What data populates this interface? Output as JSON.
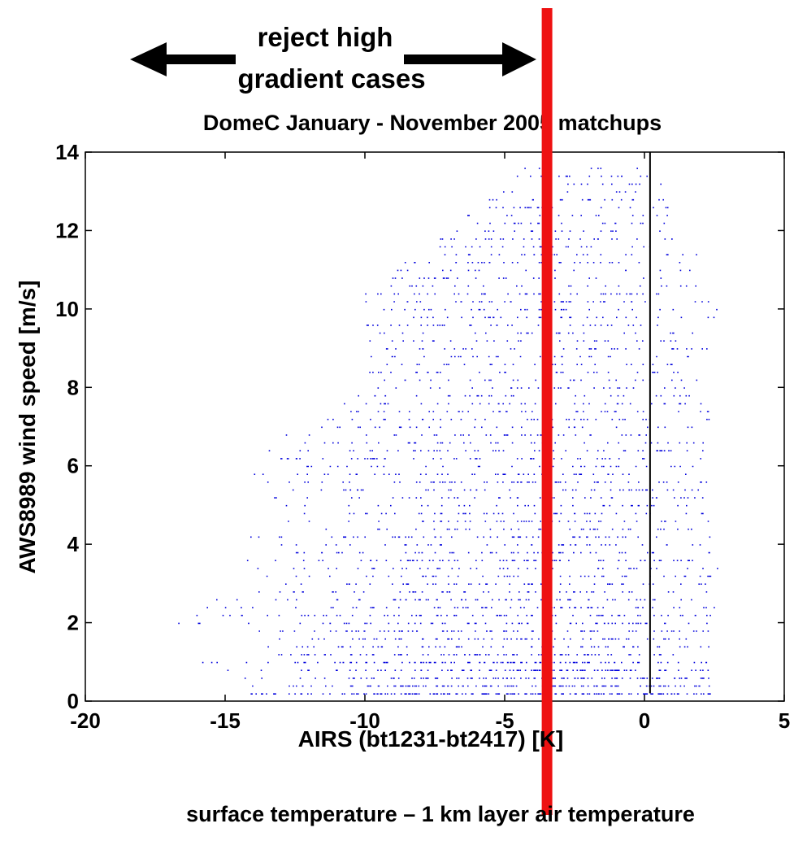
{
  "annotations": {
    "reject_line1": "reject high",
    "reject_line2": "gradient cases",
    "bottom_caption": "surface temperature – 1 km layer air temperature"
  },
  "chart_data": {
    "type": "scatter",
    "title": "DomeC January - November 2005 matchups",
    "xlabel": "AIRS (bt1231-bt2417) [K]",
    "ylabel": "AWS8989 wind speed [m/s]",
    "xlim": [
      -20,
      5
    ],
    "ylim": [
      0,
      14
    ],
    "xticks": [
      -20,
      -15,
      -10,
      -5,
      0,
      5
    ],
    "yticks": [
      0,
      2,
      4,
      6,
      8,
      10,
      12,
      14
    ],
    "grid": false,
    "point_color": "#0000dd",
    "threshold_line": {
      "x": -3.5,
      "color": "#ee1111"
    },
    "reference_line": {
      "x": 0.2,
      "y_range": [
        0.2,
        14
      ],
      "color": "#000000"
    },
    "point_density": [
      {
        "x_range": [
          -20,
          -16
        ],
        "y_range": [
          0,
          11
        ],
        "density": "sparse"
      },
      {
        "x_range": [
          -16,
          -10
        ],
        "y_range": [
          0,
          7
        ],
        "density": "medium"
      },
      {
        "x_range": [
          -10,
          2
        ],
        "y_range": [
          0,
          13.5
        ],
        "density": "dense"
      }
    ]
  }
}
